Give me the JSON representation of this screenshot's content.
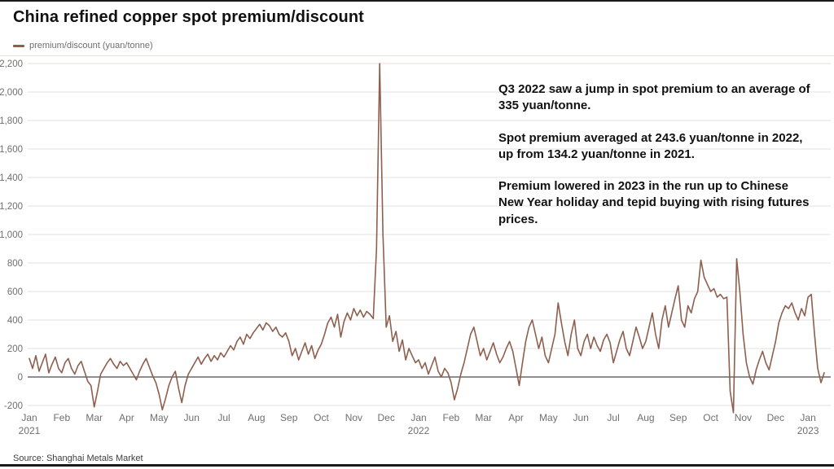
{
  "title": "China refined copper spot premium/discount",
  "legend": {
    "label": "premium/discount (yuan/tonne)",
    "color": "#8e5f4e"
  },
  "annotations": [
    "Q3 2022 saw a jump in spot premium to an average of 335 yuan/tonne.",
    "Spot premium averaged at 243.6 yuan/tonne in 2022, up from 134.2 yuan/tonne in 2021.",
    "Premium lowered in 2023 in the run up to Chinese New Year holiday and tepid buying with rising futures prices."
  ],
  "source": "Source: Shanghai Metals Market",
  "colors": {
    "line": "#8e5f4e",
    "gridline": "#e4e1dd",
    "zero_line": "#4a4a4a",
    "tick_label": "#6f6f6f"
  },
  "chart_data": {
    "type": "line",
    "title": "China refined copper spot premium/discount",
    "xlabel": "",
    "ylabel": "premium/discount (yuan/tonne)",
    "ylim": [
      -300,
      2250
    ],
    "grid": true,
    "legend_position": "top-left",
    "y_ticks": [
      -200,
      0,
      200,
      400,
      600,
      800,
      1000,
      1200,
      1400,
      1600,
      1800,
      2000,
      2200
    ],
    "x_tick_labels": [
      "Jan",
      "Feb",
      "Mar",
      "Apr",
      "May",
      "Jun",
      "Jul",
      "Aug",
      "Sep",
      "Oct",
      "Nov",
      "Dec",
      "Jan",
      "Feb",
      "Mar",
      "Apr",
      "May",
      "Jun",
      "Jul",
      "Aug",
      "Sep",
      "Oct",
      "Nov",
      "Dec",
      "Jan"
    ],
    "year_labels": [
      {
        "index": 0,
        "label": "2021"
      },
      {
        "index": 12,
        "label": "2022"
      },
      {
        "index": 24,
        "label": "2023"
      }
    ],
    "points_per_month": 10,
    "x_span_months": 24.6,
    "series": [
      {
        "name": "premium/discount (yuan/tonne)",
        "color": "#8e5f4e",
        "values": [
          130,
          60,
          150,
          40,
          100,
          160,
          30,
          90,
          140,
          60,
          30,
          100,
          130,
          60,
          20,
          80,
          110,
          40,
          -30,
          -60,
          -210,
          -100,
          20,
          60,
          100,
          130,
          90,
          60,
          110,
          80,
          100,
          60,
          20,
          -20,
          40,
          90,
          130,
          70,
          10,
          -40,
          -120,
          -230,
          -150,
          -60,
          0,
          40,
          -80,
          -180,
          -60,
          20,
          60,
          100,
          140,
          90,
          130,
          160,
          110,
          150,
          120,
          170,
          140,
          180,
          220,
          190,
          250,
          280,
          230,
          300,
          270,
          310,
          340,
          370,
          330,
          380,
          360,
          320,
          350,
          300,
          280,
          310,
          250,
          150,
          200,
          120,
          180,
          240,
          160,
          220,
          130,
          190,
          230,
          300,
          380,
          420,
          350,
          440,
          280,
          390,
          450,
          400,
          480,
          430,
          470,
          420,
          460,
          440,
          410,
          900,
          2200,
          1000,
          350,
          430,
          250,
          320,
          180,
          260,
          120,
          200,
          150,
          100,
          120,
          60,
          100,
          20,
          80,
          140,
          40,
          0,
          60,
          30,
          -40,
          -160,
          -80,
          20,
          100,
          200,
          300,
          350,
          250,
          150,
          200,
          120,
          180,
          240,
          160,
          100,
          140,
          200,
          250,
          180,
          60,
          -60,
          100,
          250,
          350,
          400,
          300,
          200,
          280,
          150,
          100,
          200,
          300,
          520,
          380,
          250,
          150,
          300,
          400,
          200,
          150,
          250,
          300,
          200,
          280,
          220,
          180,
          260,
          300,
          240,
          100,
          180,
          260,
          320,
          200,
          150,
          250,
          350,
          280,
          200,
          250,
          350,
          450,
          300,
          200,
          400,
          500,
          350,
          450,
          550,
          640,
          400,
          350,
          500,
          450,
          550,
          600,
          820,
          700,
          650,
          600,
          620,
          560,
          580,
          550,
          560,
          -100,
          -250,
          830,
          600,
          300,
          100,
          0,
          -50,
          50,
          120,
          180,
          100,
          50,
          150,
          250,
          380,
          450,
          500,
          480,
          520,
          450,
          400,
          480,
          430,
          560,
          580,
          300,
          60,
          -40,
          30
        ]
      }
    ]
  }
}
